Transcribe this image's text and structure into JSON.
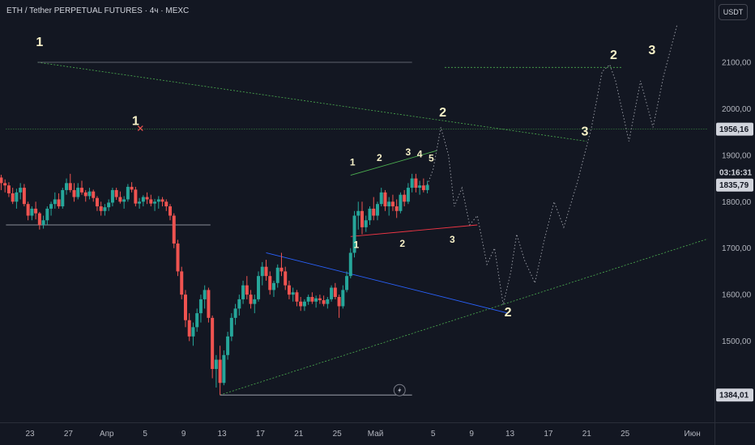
{
  "header": {
    "title": "ETH / Tether PERPETUAL FUTURES · 4ч · MEXC",
    "currency": "USDT"
  },
  "chart_data": {
    "type": "candlestick",
    "symbol": "ETH / Tether PERPETUAL FUTURES",
    "interval": "4ч",
    "exchange": "MEXC",
    "ylim": [
      1380,
      2160
    ],
    "y_ticks": [
      "2100,00",
      "2000,00",
      "1900,00",
      "1800,00",
      "1700,00",
      "1600,00",
      "1500,00"
    ],
    "x_ticks": [
      "23",
      "27",
      "Апр",
      "5",
      "9",
      "13",
      "17",
      "21",
      "25",
      "Май",
      "5",
      "9",
      "13",
      "17",
      "21",
      "25",
      "Июн"
    ],
    "x_tick_days": [
      -7,
      -3,
      1,
      5,
      9,
      13,
      17,
      21,
      25,
      29,
      35,
      39,
      43,
      47,
      51,
      55,
      62
    ],
    "price_tags": [
      {
        "label": "1956,16",
        "value": 1956.16,
        "kind": "level"
      },
      {
        "label": "03:16:31",
        "value": 1863,
        "kind": "countdown"
      },
      {
        "label": "1835,79",
        "value": 1835.79,
        "kind": "last"
      },
      {
        "label": "1384,01",
        "value": 1384.01,
        "kind": "level"
      }
    ],
    "candles": [
      [
        -10.0,
        1852,
        1858,
        1825,
        1840
      ],
      [
        -9.6,
        1840,
        1848,
        1820,
        1835
      ],
      [
        -9.2,
        1835,
        1842,
        1810,
        1818
      ],
      [
        -8.8,
        1818,
        1830,
        1795,
        1800
      ],
      [
        -8.4,
        1800,
        1828,
        1785,
        1820
      ],
      [
        -8.0,
        1820,
        1840,
        1805,
        1830
      ],
      [
        -7.6,
        1830,
        1838,
        1790,
        1795
      ],
      [
        -7.2,
        1795,
        1800,
        1760,
        1770
      ],
      [
        -6.8,
        1770,
        1790,
        1760,
        1785
      ],
      [
        -6.4,
        1785,
        1800,
        1762,
        1775
      ],
      [
        -6.0,
        1775,
        1778,
        1740,
        1750
      ],
      [
        -5.6,
        1750,
        1770,
        1742,
        1760
      ],
      [
        -5.2,
        1760,
        1790,
        1750,
        1785
      ],
      [
        -4.8,
        1785,
        1800,
        1770,
        1795
      ],
      [
        -4.4,
        1795,
        1820,
        1785,
        1805
      ],
      [
        -4.0,
        1805,
        1818,
        1785,
        1790
      ],
      [
        -3.6,
        1790,
        1830,
        1785,
        1825
      ],
      [
        -3.2,
        1825,
        1850,
        1815,
        1840
      ],
      [
        -2.8,
        1840,
        1860,
        1820,
        1825
      ],
      [
        -2.4,
        1825,
        1840,
        1800,
        1810
      ],
      [
        -2.0,
        1810,
        1840,
        1805,
        1830
      ],
      [
        -1.6,
        1830,
        1845,
        1815,
        1820
      ],
      [
        -1.2,
        1820,
        1825,
        1800,
        1812
      ],
      [
        -0.8,
        1812,
        1830,
        1805,
        1822
      ],
      [
        -0.4,
        1822,
        1826,
        1800,
        1808
      ],
      [
        0.0,
        1808,
        1812,
        1780,
        1790
      ],
      [
        0.4,
        1790,
        1800,
        1770,
        1780
      ],
      [
        0.8,
        1780,
        1795,
        1770,
        1788
      ],
      [
        1.2,
        1788,
        1805,
        1780,
        1798
      ],
      [
        1.6,
        1798,
        1830,
        1790,
        1825
      ],
      [
        2.0,
        1825,
        1830,
        1804,
        1810
      ],
      [
        2.4,
        1810,
        1822,
        1796,
        1800
      ],
      [
        2.8,
        1800,
        1812,
        1785,
        1805
      ],
      [
        3.2,
        1805,
        1838,
        1800,
        1832
      ],
      [
        3.6,
        1832,
        1842,
        1820,
        1826
      ],
      [
        4.0,
        1826,
        1832,
        1790,
        1796
      ],
      [
        4.4,
        1796,
        1808,
        1785,
        1800
      ],
      [
        4.8,
        1800,
        1814,
        1790,
        1810
      ],
      [
        5.2,
        1810,
        1820,
        1795,
        1805
      ],
      [
        5.6,
        1805,
        1815,
        1790,
        1796
      ],
      [
        6.0,
        1796,
        1806,
        1780,
        1800
      ],
      [
        6.4,
        1800,
        1812,
        1785,
        1805
      ],
      [
        6.8,
        1805,
        1810,
        1790,
        1800
      ],
      [
        7.2,
        1800,
        1805,
        1780,
        1790
      ],
      [
        7.6,
        1790,
        1795,
        1760,
        1770
      ],
      [
        8.0,
        1770,
        1775,
        1700,
        1710
      ],
      [
        8.4,
        1710,
        1718,
        1640,
        1650
      ],
      [
        8.8,
        1650,
        1660,
        1590,
        1600
      ],
      [
        9.2,
        1600,
        1610,
        1530,
        1545
      ],
      [
        9.6,
        1545,
        1560,
        1500,
        1510
      ],
      [
        10.0,
        1510,
        1540,
        1490,
        1530
      ],
      [
        10.4,
        1530,
        1570,
        1520,
        1560
      ],
      [
        10.8,
        1560,
        1600,
        1540,
        1590
      ],
      [
        11.2,
        1590,
        1620,
        1570,
        1610
      ],
      [
        11.6,
        1610,
        1615,
        1540,
        1550
      ],
      [
        12.0,
        1550,
        1555,
        1420,
        1440
      ],
      [
        12.4,
        1440,
        1470,
        1400,
        1460
      ],
      [
        12.8,
        1460,
        1490,
        1384,
        1410
      ],
      [
        13.2,
        1410,
        1480,
        1405,
        1470
      ],
      [
        13.6,
        1470,
        1520,
        1460,
        1510
      ],
      [
        14.0,
        1510,
        1560,
        1500,
        1550
      ],
      [
        14.4,
        1550,
        1580,
        1535,
        1570
      ],
      [
        14.8,
        1570,
        1600,
        1555,
        1590
      ],
      [
        15.2,
        1590,
        1630,
        1580,
        1620
      ],
      [
        15.6,
        1620,
        1640,
        1590,
        1600
      ],
      [
        16.0,
        1600,
        1610,
        1570,
        1580
      ],
      [
        16.4,
        1580,
        1600,
        1560,
        1590
      ],
      [
        16.8,
        1590,
        1650,
        1585,
        1640
      ],
      [
        17.2,
        1640,
        1670,
        1620,
        1660
      ],
      [
        17.6,
        1660,
        1675,
        1630,
        1640
      ],
      [
        18.0,
        1640,
        1650,
        1600,
        1610
      ],
      [
        18.4,
        1610,
        1630,
        1595,
        1625
      ],
      [
        18.8,
        1625,
        1665,
        1615,
        1658
      ],
      [
        19.2,
        1658,
        1690,
        1640,
        1650
      ],
      [
        19.6,
        1650,
        1660,
        1610,
        1620
      ],
      [
        20.0,
        1620,
        1630,
        1590,
        1600
      ],
      [
        20.4,
        1600,
        1615,
        1585,
        1605
      ],
      [
        20.8,
        1605,
        1610,
        1575,
        1585
      ],
      [
        21.2,
        1585,
        1595,
        1565,
        1575
      ],
      [
        21.6,
        1575,
        1590,
        1565,
        1585
      ],
      [
        22.0,
        1585,
        1600,
        1578,
        1595
      ],
      [
        22.4,
        1595,
        1605,
        1580,
        1585
      ],
      [
        22.8,
        1585,
        1598,
        1572,
        1592
      ],
      [
        23.2,
        1592,
        1600,
        1580,
        1588
      ],
      [
        23.6,
        1588,
        1598,
        1575,
        1580
      ],
      [
        24.0,
        1580,
        1595,
        1570,
        1590
      ],
      [
        24.4,
        1590,
        1620,
        1585,
        1615
      ],
      [
        24.8,
        1615,
        1625,
        1590,
        1595
      ],
      [
        25.2,
        1595,
        1600,
        1550,
        1575
      ],
      [
        25.6,
        1575,
        1620,
        1570,
        1610
      ],
      [
        26.0,
        1610,
        1650,
        1605,
        1640
      ],
      [
        26.4,
        1640,
        1700,
        1635,
        1690
      ],
      [
        26.8,
        1690,
        1780,
        1680,
        1770
      ],
      [
        27.2,
        1770,
        1800,
        1740,
        1780
      ],
      [
        27.6,
        1780,
        1800,
        1730,
        1745
      ],
      [
        28.0,
        1745,
        1770,
        1735,
        1760
      ],
      [
        28.4,
        1760,
        1790,
        1750,
        1785
      ],
      [
        28.8,
        1785,
        1810,
        1760,
        1770
      ],
      [
        29.2,
        1770,
        1800,
        1760,
        1795
      ],
      [
        29.6,
        1795,
        1830,
        1790,
        1820
      ],
      [
        30.0,
        1820,
        1825,
        1780,
        1790
      ],
      [
        30.4,
        1790,
        1810,
        1770,
        1800
      ],
      [
        30.8,
        1800,
        1815,
        1780,
        1790
      ],
      [
        31.2,
        1790,
        1805,
        1765,
        1780
      ],
      [
        31.6,
        1780,
        1820,
        1775,
        1815
      ],
      [
        32.0,
        1815,
        1825,
        1790,
        1800
      ],
      [
        32.4,
        1800,
        1840,
        1795,
        1830
      ],
      [
        32.8,
        1830,
        1860,
        1820,
        1850
      ],
      [
        33.2,
        1850,
        1860,
        1820,
        1830
      ],
      [
        33.6,
        1830,
        1845,
        1815,
        1835
      ],
      [
        34.0,
        1835,
        1850,
        1820,
        1825
      ],
      [
        34.4,
        1825,
        1845,
        1818,
        1836
      ]
    ],
    "wave_labels": [
      {
        "text": "1",
        "day": -6.0,
        "price": 2135,
        "size": 16
      },
      {
        "text": "1",
        "day": 4.0,
        "price": 1965,
        "size": 16
      },
      {
        "text": "1",
        "day": 26.6,
        "price": 1878,
        "size": 12
      },
      {
        "text": "2",
        "day": 29.4,
        "price": 1888,
        "size": 12
      },
      {
        "text": "3",
        "day": 32.4,
        "price": 1900,
        "size": 12
      },
      {
        "text": "4",
        "day": 33.6,
        "price": 1895,
        "size": 12
      },
      {
        "text": "5",
        "day": 34.8,
        "price": 1887,
        "size": 12
      },
      {
        "text": "1",
        "day": 27.0,
        "price": 1700,
        "size": 12
      },
      {
        "text": "2",
        "day": 31.8,
        "price": 1703,
        "size": 12
      },
      {
        "text": "3",
        "day": 37.0,
        "price": 1712,
        "size": 12
      },
      {
        "text": "2",
        "day": 36.0,
        "price": 1983,
        "size": 16
      },
      {
        "text": "2",
        "day": 42.8,
        "price": 1553,
        "size": 16
      },
      {
        "text": "3",
        "day": 50.8,
        "price": 1942,
        "size": 16
      },
      {
        "text": "2",
        "day": 53.8,
        "price": 2107,
        "size": 16
      },
      {
        "text": "3",
        "day": 57.8,
        "price": 2117,
        "size": 16
      }
    ],
    "projection": [
      [
        34.4,
        1836
      ],
      [
        35.0,
        1870
      ],
      [
        35.8,
        1960
      ],
      [
        36.6,
        1900
      ],
      [
        37.2,
        1790
      ],
      [
        38.0,
        1830
      ],
      [
        38.8,
        1750
      ],
      [
        39.6,
        1770
      ],
      [
        40.6,
        1665
      ],
      [
        41.4,
        1700
      ],
      [
        42.3,
        1578
      ],
      [
        43.1,
        1650
      ],
      [
        43.7,
        1730
      ],
      [
        44.5,
        1675
      ],
      [
        45.6,
        1625
      ],
      [
        46.6,
        1720
      ],
      [
        47.6,
        1800
      ],
      [
        48.6,
        1745
      ],
      [
        50.0,
        1840
      ],
      [
        51.5,
        1960
      ],
      [
        52.6,
        2080
      ],
      [
        53.4,
        2095
      ],
      [
        54.0,
        2060
      ],
      [
        55.4,
        1930
      ],
      [
        56.6,
        2060
      ],
      [
        57.9,
        1960
      ],
      [
        59.0,
        2070
      ],
      [
        60.4,
        2180
      ]
    ],
    "trendlines": [
      {
        "x1": -6.2,
        "y1": 2100,
        "x2": 51.0,
        "y2": 1930,
        "color": "#4caf50",
        "dash": "2,2",
        "width": 0.8
      },
      {
        "x1": -6.2,
        "y1": 2100,
        "x2": 32.8,
        "y2": 2100,
        "color": "#787b86",
        "dash": "",
        "width": 0.8
      },
      {
        "x1": 36.2,
        "y1": 2089,
        "x2": 54.6,
        "y2": 2089,
        "color": "#4caf50",
        "dash": "2,2",
        "width": 0.8
      },
      {
        "x1": 12.8,
        "y1": 1384,
        "x2": 63.6,
        "y2": 1720,
        "color": "#4caf50",
        "dash": "2,2",
        "width": 0.8
      },
      {
        "x1": 17.6,
        "y1": 1690,
        "x2": 42.8,
        "y2": 1560,
        "color": "#2962ff",
        "dash": "",
        "width": 0.9
      },
      {
        "x1": 26.4,
        "y1": 1725,
        "x2": 39.6,
        "y2": 1750,
        "color": "#f23645",
        "dash": "",
        "width": 0.9
      },
      {
        "x1": 26.4,
        "y1": 1857,
        "x2": 35.4,
        "y2": 1910,
        "color": "#4caf50",
        "dash": "",
        "width": 0.9
      },
      {
        "x1": -9.5,
        "y1": 1750,
        "x2": 11.8,
        "y2": 1750,
        "color": "#b2b5be",
        "dash": "",
        "width": 0.8
      },
      {
        "x1": 12.8,
        "y1": 1384,
        "x2": 32.8,
        "y2": 1384,
        "color": "#b2b5be",
        "dash": "",
        "width": 0.8
      },
      {
        "x1": -9.5,
        "y1": 1956.16,
        "x2": 63.6,
        "y2": 1956.16,
        "color": "#4caf50",
        "dash": "1,2",
        "width": 0.8
      }
    ],
    "grid": false,
    "legend": "none"
  }
}
